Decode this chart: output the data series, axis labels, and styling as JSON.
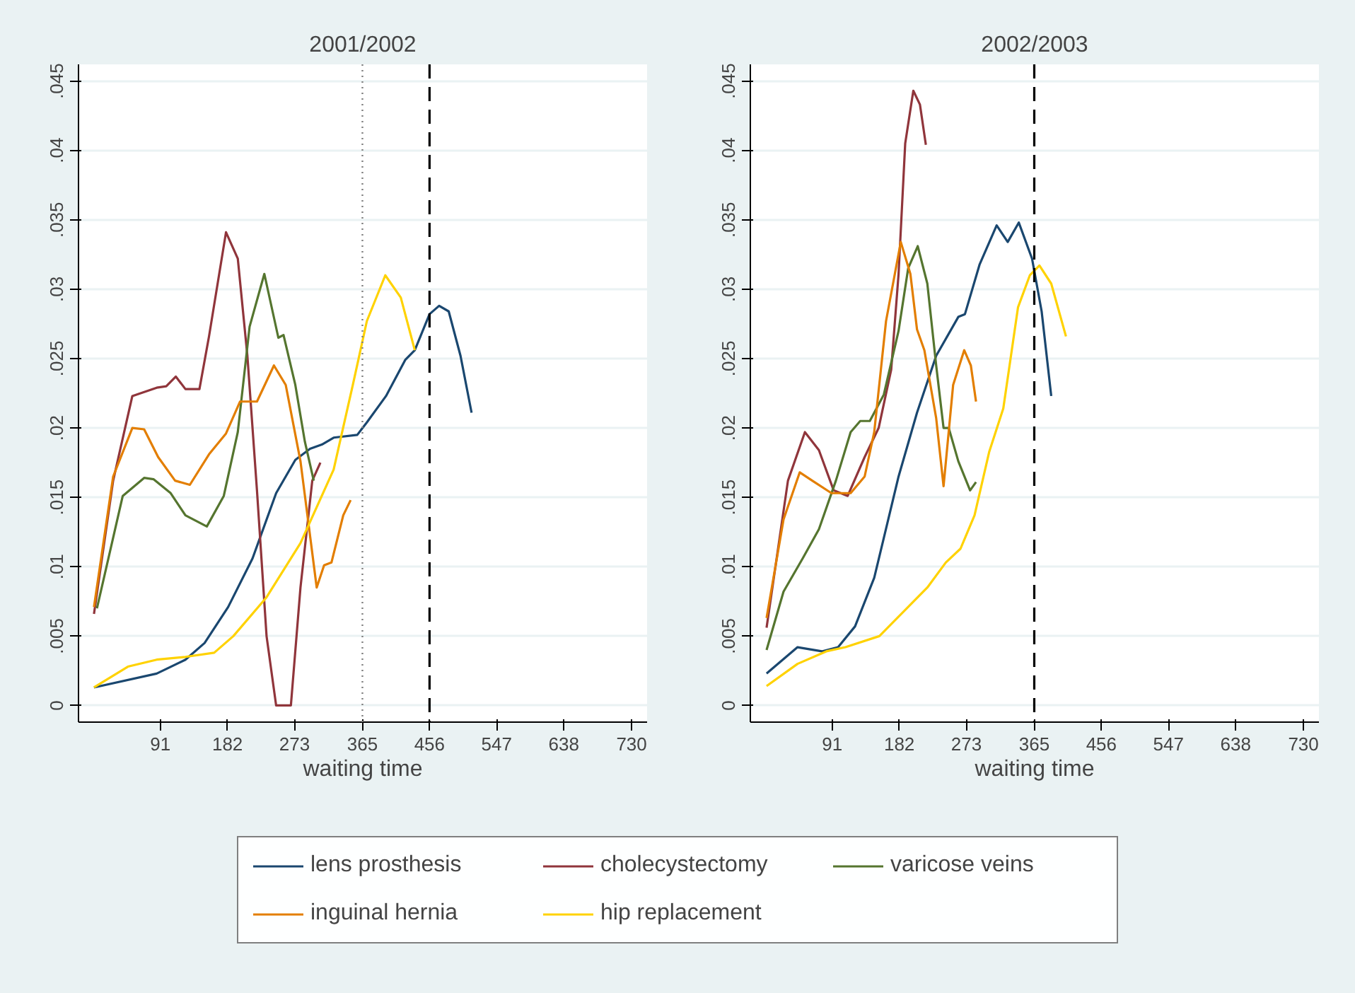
{
  "chart_data": [
    {
      "type": "line",
      "title": "2001/2002",
      "xlabel": "waiting time",
      "xlim": [
        -20,
        751
      ],
      "ylim": [
        -0.0012,
        0.0462
      ],
      "xticks": [
        91,
        182,
        273,
        365,
        456,
        547,
        638,
        730
      ],
      "yticks": [
        0,
        {
          "value": 0.005,
          "label": ".005"
        },
        {
          "value": 0.01,
          "label": ".01"
        },
        {
          "value": 0.015,
          "label": ".015"
        },
        {
          "value": 0.02,
          "label": ".02"
        },
        {
          "value": 0.025,
          "label": ".025"
        },
        {
          "value": 0.03,
          "label": ".03"
        },
        {
          "value": 0.035,
          "label": ".035"
        },
        {
          "value": 0.04,
          "label": ".04"
        },
        {
          "value": 0.045,
          "label": ".045"
        }
      ],
      "grid": "y",
      "legend": "bottom",
      "marker": "none",
      "line_style": "solid",
      "ref_lines": [
        {
          "axis": "x",
          "value": 365,
          "line_style": "dotted",
          "color": "#7f7f7f"
        },
        {
          "axis": "x",
          "value": 456,
          "line_style": "dashed",
          "color": "#000000"
        }
      ],
      "series": [
        {
          "name": "lens prosthesis",
          "color": "#1a476f",
          "x": [
            1,
            86,
            125,
            151,
            183,
            216,
            248,
            274,
            294,
            310,
            326,
            358,
            371,
            397,
            423,
            436,
            456,
            469,
            482,
            498,
            513
          ],
          "values": [
            0.0013,
            0.0023,
            0.0033,
            0.0045,
            0.0071,
            0.0106,
            0.0153,
            0.0177,
            0.0185,
            0.0188,
            0.0193,
            0.0195,
            0.0204,
            0.0223,
            0.0249,
            0.0256,
            0.0282,
            0.0288,
            0.0284,
            0.0252,
            0.0211
          ]
        },
        {
          "name": "cholecystectomy",
          "color": "#90353b",
          "x": [
            1,
            27,
            53,
            86,
            99,
            112,
            125,
            144,
            157,
            180,
            196,
            209,
            222,
            235,
            248,
            268,
            281,
            297,
            308
          ],
          "values": [
            0.0066,
            0.0162,
            0.0223,
            0.0229,
            0.023,
            0.0237,
            0.0228,
            0.0228,
            0.0266,
            0.0341,
            0.0322,
            0.0252,
            0.0155,
            0.005,
            0,
            0,
            0.0085,
            0.0162,
            0.0175
          ]
        },
        {
          "name": "varicose veins",
          "color": "#55752f",
          "x": [
            5,
            40,
            69,
            82,
            105,
            125,
            154,
            177,
            196,
            212,
            232,
            251,
            258,
            274,
            287,
            299
          ],
          "values": [
            0.007,
            0.0151,
            0.0164,
            0.0163,
            0.0153,
            0.0137,
            0.0129,
            0.0151,
            0.0197,
            0.0273,
            0.0311,
            0.0265,
            0.0267,
            0.0231,
            0.019,
            0.0162
          ]
        },
        {
          "name": "inguinal hernia",
          "color": "#e37e00",
          "x": [
            1,
            27,
            53,
            69,
            88,
            111,
            131,
            157,
            180,
            199,
            222,
            245,
            261,
            281,
            303,
            313,
            323,
            339,
            349
          ],
          "values": [
            0.0071,
            0.0165,
            0.02,
            0.0199,
            0.0179,
            0.0162,
            0.0159,
            0.0181,
            0.0196,
            0.0219,
            0.0219,
            0.0245,
            0.0231,
            0.0176,
            0.0085,
            0.0101,
            0.0103,
            0.0137,
            0.0148
          ]
        },
        {
          "name": "hip replacement",
          "color": "#ffd200",
          "x": [
            1,
            47,
            86,
            125,
            164,
            190,
            235,
            281,
            326,
            352,
            371,
            396,
            417,
            436
          ],
          "values": [
            0.0013,
            0.0028,
            0.0033,
            0.0035,
            0.0038,
            0.005,
            0.0078,
            0.0117,
            0.017,
            0.0231,
            0.0277,
            0.031,
            0.0294,
            0.0256
          ]
        }
      ]
    },
    {
      "type": "line",
      "title": "2002/2003",
      "xlabel": "waiting time",
      "xlim": [
        -20,
        751
      ],
      "ylim": [
        -0.0012,
        0.0462
      ],
      "xticks": [
        91,
        182,
        273,
        365,
        456,
        547,
        638,
        730
      ],
      "yticks": [
        0,
        {
          "value": 0.005,
          "label": ".005"
        },
        {
          "value": 0.01,
          "label": ".01"
        },
        {
          "value": 0.015,
          "label": ".015"
        },
        {
          "value": 0.02,
          "label": ".02"
        },
        {
          "value": 0.025,
          "label": ".025"
        },
        {
          "value": 0.03,
          "label": ".03"
        },
        {
          "value": 0.035,
          "label": ".035"
        },
        {
          "value": 0.04,
          "label": ".04"
        },
        {
          "value": 0.045,
          "label": ".045"
        }
      ],
      "grid": "y",
      "legend": "bottom",
      "marker": "none",
      "line_style": "solid",
      "ref_lines": [
        {
          "axis": "x",
          "value": 365,
          "line_style": "dashed",
          "color": "#000000"
        }
      ],
      "series": [
        {
          "name": "lens prosthesis",
          "color": "#1a476f",
          "x": [
            2,
            44,
            77,
            99,
            122,
            148,
            181,
            206,
            232,
            262,
            271,
            291,
            314,
            329,
            344,
            362,
            375,
            388
          ],
          "values": [
            0.0023,
            0.0042,
            0.0039,
            0.0042,
            0.0057,
            0.0092,
            0.0165,
            0.0211,
            0.0252,
            0.028,
            0.0282,
            0.0318,
            0.0346,
            0.0334,
            0.0348,
            0.0322,
            0.0284,
            0.0223
          ]
        },
        {
          "name": "cholecystectomy",
          "color": "#90353b",
          "x": [
            2,
            31,
            54,
            73,
            93,
            112,
            135,
            154,
            171,
            181,
            190,
            201,
            210,
            218
          ],
          "values": [
            0.0056,
            0.0162,
            0.0197,
            0.0184,
            0.0155,
            0.0151,
            0.0179,
            0.02,
            0.0242,
            0.0311,
            0.0405,
            0.0443,
            0.0433,
            0.0404
          ]
        },
        {
          "name": "varicose veins",
          "color": "#55752f",
          "x": [
            2,
            25,
            51,
            73,
            96,
            116,
            129,
            142,
            161,
            181,
            194,
            207,
            220,
            232,
            242,
            249,
            262,
            278,
            286
          ],
          "values": [
            0.004,
            0.0082,
            0.0106,
            0.0127,
            0.0162,
            0.0197,
            0.0205,
            0.0205,
            0.0224,
            0.027,
            0.0315,
            0.0331,
            0.0304,
            0.0245,
            0.02,
            0.02,
            0.0176,
            0.0155,
            0.0161
          ]
        },
        {
          "name": "inguinal hernia",
          "color": "#e37e00",
          "x": [
            2,
            25,
            47,
            64,
            90,
            116,
            135,
            148,
            164,
            184,
            197,
            206,
            216,
            232,
            242,
            255,
            270,
            279,
            286
          ],
          "values": [
            0.0063,
            0.0134,
            0.0168,
            0.0162,
            0.0153,
            0.0153,
            0.0165,
            0.0197,
            0.0277,
            0.0334,
            0.0311,
            0.0271,
            0.0256,
            0.0207,
            0.0158,
            0.0231,
            0.0256,
            0.0245,
            0.0219
          ]
        },
        {
          "name": "hip replacement",
          "color": "#ffd200",
          "x": [
            2,
            44,
            83,
            109,
            155,
            181,
            220,
            245,
            265,
            284,
            304,
            323,
            343,
            359,
            372,
            388,
            408
          ],
          "values": [
            0.0014,
            0.003,
            0.0039,
            0.0042,
            0.005,
            0.0064,
            0.0085,
            0.0103,
            0.0113,
            0.0137,
            0.0183,
            0.0214,
            0.0287,
            0.031,
            0.0317,
            0.0304,
            0.0266
          ]
        }
      ]
    }
  ]
}
